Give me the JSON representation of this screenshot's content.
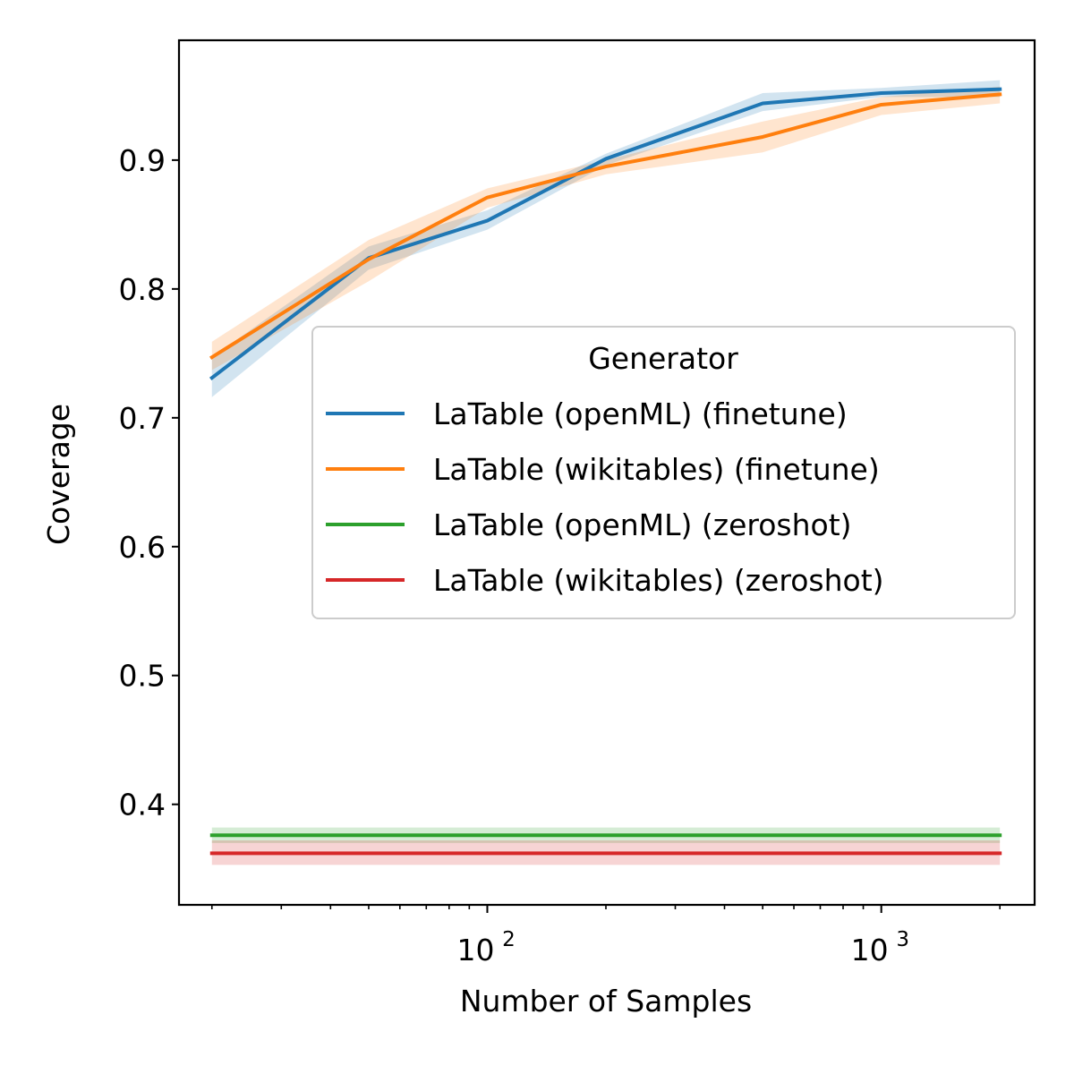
{
  "chart_data": {
    "type": "line",
    "title": "",
    "xlabel": "Number of Samples",
    "ylabel": "Coverage",
    "xscale": "log",
    "xlim": [
      16.5,
      2450
    ],
    "ylim": [
      0.322,
      0.993
    ],
    "grid": false,
    "x_major_ticks": [
      {
        "value": 100,
        "base": "10",
        "exp": "2"
      },
      {
        "value": 1000,
        "base": "10",
        "exp": "3"
      }
    ],
    "x_minor_ticks": [
      20,
      30,
      40,
      50,
      60,
      70,
      80,
      90,
      200,
      300,
      400,
      500,
      600,
      700,
      800,
      900,
      2000
    ],
    "y_ticks": [
      {
        "value": 0.4,
        "label": "0.4"
      },
      {
        "value": 0.5,
        "label": "0.5"
      },
      {
        "value": 0.6,
        "label": "0.6"
      },
      {
        "value": 0.7,
        "label": "0.7"
      },
      {
        "value": 0.8,
        "label": "0.8"
      },
      {
        "value": 0.9,
        "label": "0.9"
      }
    ],
    "legend": {
      "title": "Generator",
      "placement": "center-right"
    },
    "series": [
      {
        "name": "LaTable (openML) (finetune)",
        "color": "#1f77b4",
        "x": [
          20,
          50,
          100,
          200,
          500,
          1000,
          2000
        ],
        "y": [
          0.731,
          0.824,
          0.853,
          0.901,
          0.944,
          0.952,
          0.955
        ],
        "lower": [
          0.716,
          0.815,
          0.846,
          0.896,
          0.938,
          0.949,
          0.949
        ],
        "upper": [
          0.747,
          0.833,
          0.861,
          0.905,
          0.952,
          0.956,
          0.962
        ]
      },
      {
        "name": "LaTable (wikitables) (finetune)",
        "color": "#ff7f0e",
        "x": [
          20,
          50,
          100,
          200,
          500,
          1000,
          2000
        ],
        "y": [
          0.747,
          0.823,
          0.871,
          0.895,
          0.918,
          0.943,
          0.951
        ],
        "lower": [
          0.737,
          0.806,
          0.863,
          0.889,
          0.906,
          0.935,
          0.944
        ],
        "upper": [
          0.759,
          0.838,
          0.878,
          0.9,
          0.93,
          0.949,
          0.957
        ]
      },
      {
        "name": "LaTable (openML) (zeroshot)",
        "color": "#2ca02c",
        "x": [
          20,
          50,
          100,
          200,
          500,
          1000,
          2000
        ],
        "y": [
          0.376,
          0.376,
          0.376,
          0.376,
          0.376,
          0.376,
          0.376
        ],
        "lower": [
          0.37,
          0.37,
          0.37,
          0.37,
          0.37,
          0.37,
          0.37
        ],
        "upper": [
          0.382,
          0.382,
          0.382,
          0.382,
          0.382,
          0.382,
          0.382
        ]
      },
      {
        "name": "LaTable (wikitables) (zeroshot)",
        "color": "#d62728",
        "x": [
          20,
          50,
          100,
          200,
          500,
          1000,
          2000
        ],
        "y": [
          0.362,
          0.362,
          0.362,
          0.362,
          0.362,
          0.362,
          0.362
        ],
        "lower": [
          0.353,
          0.353,
          0.353,
          0.353,
          0.353,
          0.353,
          0.353
        ],
        "upper": [
          0.372,
          0.372,
          0.372,
          0.372,
          0.372,
          0.372,
          0.372
        ]
      }
    ]
  }
}
